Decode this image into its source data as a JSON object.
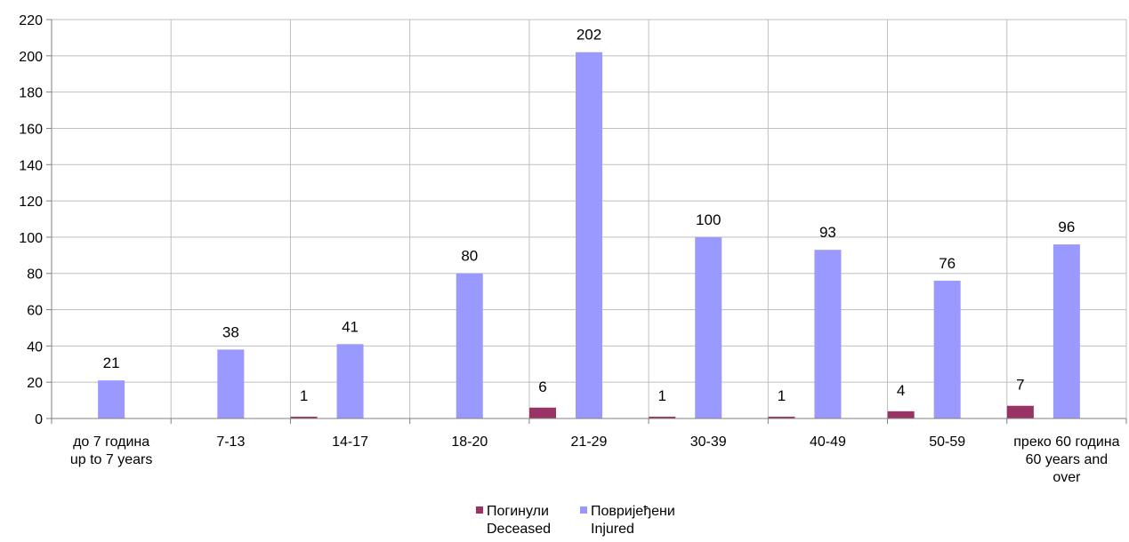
{
  "chart_data": {
    "type": "bar",
    "categories": [
      [
        "до 7 година",
        "up to 7 years"
      ],
      [
        "7-13"
      ],
      [
        "14-17"
      ],
      [
        "18-20"
      ],
      [
        "21-29"
      ],
      [
        "30-39"
      ],
      [
        "40-49"
      ],
      [
        "50-59"
      ],
      [
        "преко 60 година",
        "60 years and",
        "over"
      ]
    ],
    "series": [
      {
        "name": [
          "Погинули",
          "Deceased"
        ],
        "color": "#993366",
        "values": [
          0,
          0,
          1,
          0,
          6,
          1,
          1,
          4,
          7
        ],
        "labels": [
          "",
          "",
          "1",
          "",
          "6",
          "1",
          "1",
          "4",
          "7"
        ]
      },
      {
        "name": [
          "Повријеђени",
          "Injured"
        ],
        "color": "#9999ff",
        "values": [
          21,
          38,
          41,
          80,
          202,
          100,
          93,
          76,
          96
        ],
        "labels": [
          "21",
          "38",
          "41",
          "80",
          "202",
          "100",
          "93",
          "76",
          "96"
        ]
      }
    ],
    "ylim": [
      0,
      220
    ],
    "yticks": [
      0,
      20,
      40,
      60,
      80,
      100,
      120,
      140,
      160,
      180,
      200,
      220
    ],
    "grid": true,
    "legend": "bottom-center"
  }
}
